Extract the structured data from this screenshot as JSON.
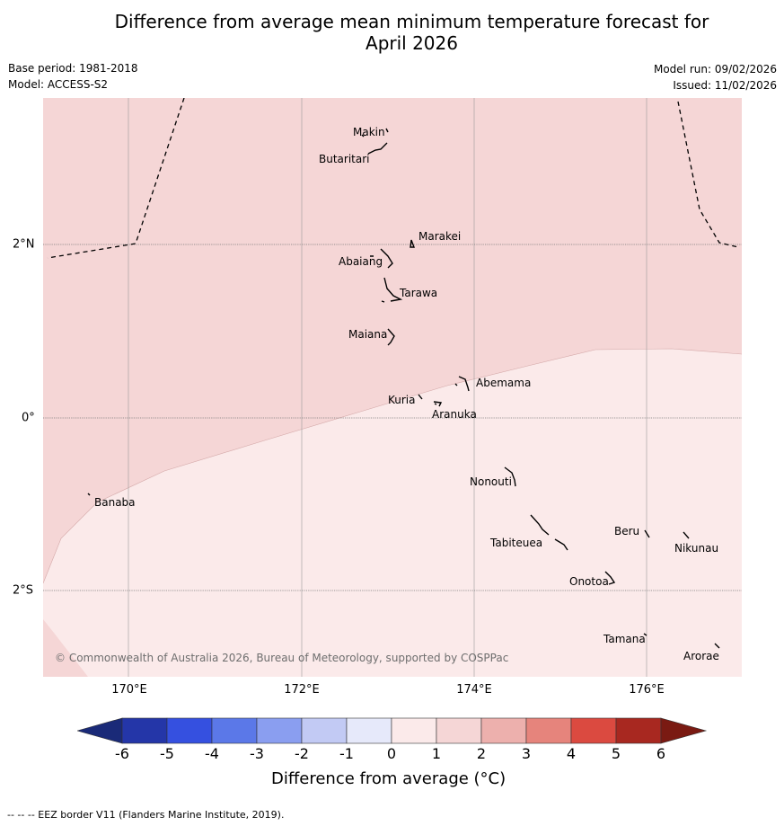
{
  "title_line1": "Difference from average mean minimum temperature forecast for",
  "title_line2": "April 2026",
  "base_period": "Base period: 1981-2018",
  "model": "Model: ACCESS-S2",
  "model_run": "Model run: 09/02/2026",
  "issued": "Issued: 11/02/2026",
  "copyright": "© Commonwealth of Australia 2026, Bureau of Meteorology, supported by COSPPac",
  "longitude_labels": [
    "170°E",
    "172°E",
    "174°E",
    "176°E"
  ],
  "latitude_labels": [
    "2°N",
    "0°",
    "2°S"
  ],
  "islands": [
    "Makin",
    "Butaritari",
    "Marakei",
    "Abaiang",
    "Tarawa",
    "Maiana",
    "Abemama",
    "Kuria",
    "Aranuka",
    "Banaba",
    "Nonouti",
    "Tabiteuea",
    "Beru",
    "Nikunau",
    "Onotoa",
    "Tamana",
    "Arorae"
  ],
  "colorbar": {
    "ticks": [
      "-6",
      "-5",
      "-4",
      "-3",
      "-2",
      "-1",
      "0",
      "1",
      "2",
      "3",
      "4",
      "5",
      "6"
    ],
    "colors": [
      "#2436a8",
      "#3550e0",
      "#5b78e8",
      "#8a9ef0",
      "#c2caf4",
      "#e6e9fa",
      "#fbeaea",
      "#f5d6d6",
      "#edb0ad",
      "#e6847c",
      "#db4a40",
      "#a82820"
    ],
    "under_color": "#1a2a78",
    "over_color": "#7a1a12",
    "label": "Difference from average (°C)"
  },
  "regions": {
    "warmer_1_to_2_color": "#f5d6d6",
    "warmer_0_to_1_color": "#fbeaea"
  },
  "eez_note": "--  --  -- EEZ border V11 (Flanders Marine Institute, 2019)."
}
